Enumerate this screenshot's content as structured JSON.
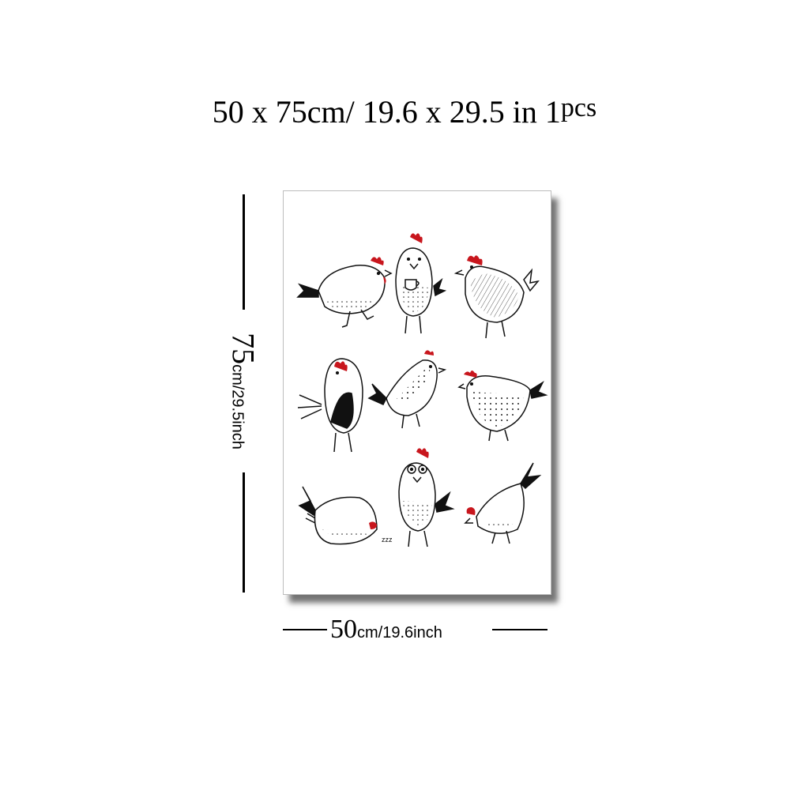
{
  "header": {
    "dims_cm": "50 x 75",
    "cm_unit": "cm/",
    "dims_in": "19.6  x  29.5 in",
    "qty": "1",
    "qty_unit": "pcs"
  },
  "height_label": {
    "value": "75",
    "unit": "cm/29.5inch"
  },
  "width_label": {
    "value": "50",
    "unit": "cm/19.6inch"
  },
  "colors": {
    "comb": "#c8161d",
    "ink": "#111111"
  },
  "artwork": {
    "zzz": "zzz"
  }
}
